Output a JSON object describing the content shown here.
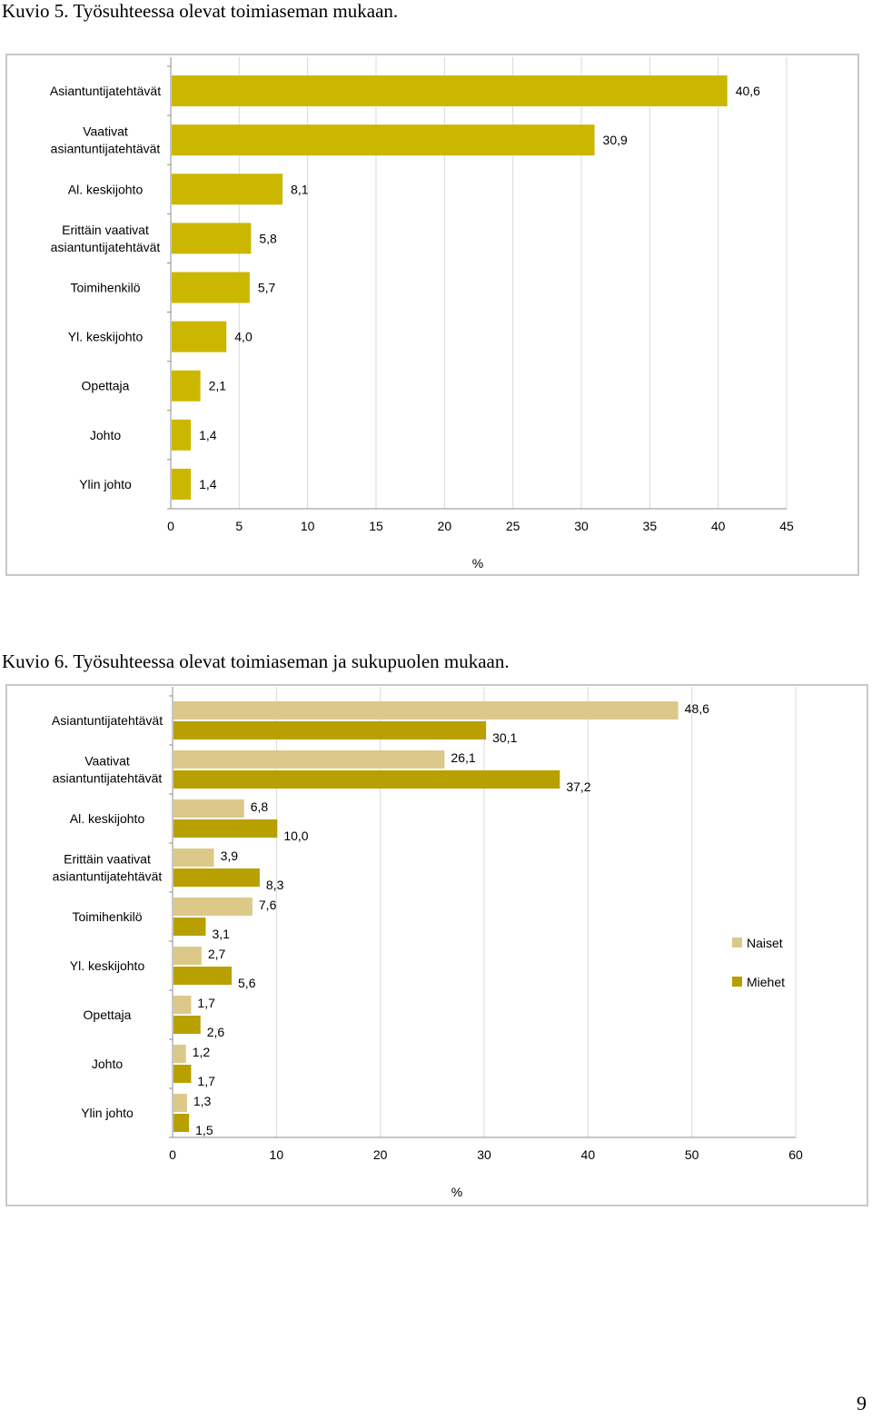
{
  "captions": {
    "fig5": "Kuvio 5. Työsuhteessa olevat toimiaseman mukaan.",
    "fig6": "Kuvio 6. Työsuhteessa olevat toimiaseman ja sukupuolen mukaan."
  },
  "page_number": "9",
  "colors": {
    "bar_single": "#cbb700",
    "naiset": "#dcc98a",
    "miehet": "#b7a000",
    "grid": "#d9d9d9",
    "axis": "#8c8c8c"
  },
  "chart_data": [
    {
      "type": "bar",
      "orientation": "horizontal",
      "categories": [
        "Asiantuntijatehtävät",
        "Vaativat asiantuntijatehtävät",
        "Al. keskijohto",
        "Erittäin vaativat asiantuntijatehtävät",
        "Toimihenkilö",
        "Yl. keskijohto",
        "Opettaja",
        "Johto",
        "Ylin johto"
      ],
      "category_lines": [
        [
          "Asiantuntijatehtävät"
        ],
        [
          "Vaativat",
          "asiantuntijatehtävät"
        ],
        [
          "Al. keskijohto"
        ],
        [
          "Erittäin vaativat",
          "asiantuntijatehtävät"
        ],
        [
          "Toimihenkilö"
        ],
        [
          "Yl. keskijohto"
        ],
        [
          "Opettaja"
        ],
        [
          "Johto"
        ],
        [
          "Ylin johto"
        ]
      ],
      "values": [
        40.6,
        30.9,
        8.1,
        5.8,
        5.7,
        4.0,
        2.1,
        1.4,
        1.4
      ],
      "value_labels": [
        "40,6",
        "30,9",
        "8,1",
        "5,8",
        "5,7",
        "4,0",
        "2,1",
        "1,4",
        "1,4"
      ],
      "xlabel": "%",
      "xlim": [
        0,
        45
      ],
      "xticks": [
        "0",
        "5",
        "10",
        "15",
        "20",
        "25",
        "30",
        "35",
        "40",
        "45"
      ],
      "grid": true,
      "legend": "none"
    },
    {
      "type": "bar",
      "orientation": "horizontal",
      "categories": [
        "Asiantuntijatehtävät",
        "Vaativat asiantuntijatehtävät",
        "Al. keskijohto",
        "Erittäin vaativat asiantuntijatehtävät",
        "Toimihenkilö",
        "Yl. keskijohto",
        "Opettaja",
        "Johto",
        "Ylin johto"
      ],
      "category_lines": [
        [
          "Asiantuntijatehtävät"
        ],
        [
          "Vaativat",
          "asiantuntijatehtävät"
        ],
        [
          "Al. keskijohto"
        ],
        [
          "Erittäin vaativat",
          "asiantuntijatehtävät"
        ],
        [
          "Toimihenkilö"
        ],
        [
          "Yl. keskijohto"
        ],
        [
          "Opettaja"
        ],
        [
          "Johto"
        ],
        [
          "Ylin johto"
        ]
      ],
      "series": [
        {
          "name": "Naiset",
          "values": [
            48.6,
            26.1,
            6.8,
            3.9,
            7.6,
            2.7,
            1.7,
            1.2,
            1.3
          ],
          "labels": [
            "48,6",
            "26,1",
            "6,8",
            "3,9",
            "7,6",
            "2,7",
            "1,7",
            "1,2",
            "1,3"
          ]
        },
        {
          "name": "Miehet",
          "values": [
            30.1,
            37.2,
            10.0,
            8.3,
            3.1,
            5.6,
            2.6,
            1.7,
            1.5
          ],
          "labels": [
            "30,1",
            "37,2",
            "10,0",
            "8,3",
            "3,1",
            "5,6",
            "2,6",
            "1,7",
            "1,5"
          ]
        }
      ],
      "xlabel": "%",
      "xlim": [
        0,
        60
      ],
      "xticks": [
        "0",
        "10",
        "20",
        "30",
        "40",
        "50",
        "60"
      ],
      "grid": true,
      "legend": "right"
    }
  ]
}
